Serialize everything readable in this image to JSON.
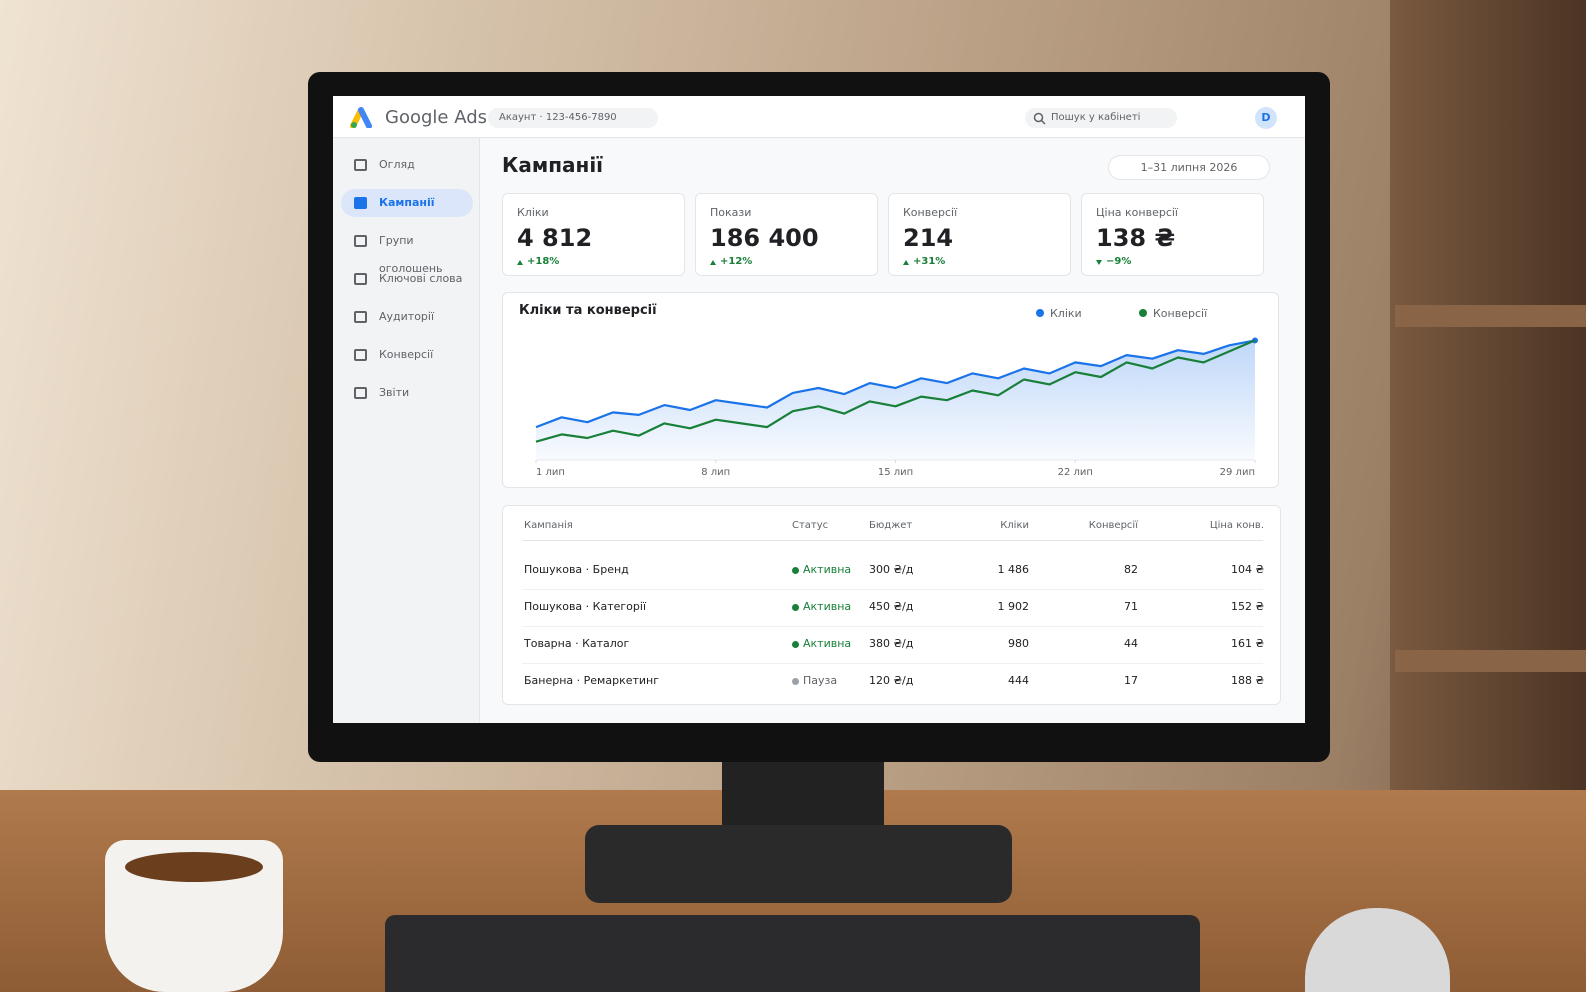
{
  "header": {
    "product": "Google Ads",
    "account": "Акаунт · 123-456-7890",
    "search_placeholder": "Пошук у кабінеті",
    "avatar": "D"
  },
  "sidebar": {
    "items": [
      {
        "label": "Огляд",
        "active": false
      },
      {
        "label": "Кампанії",
        "active": true
      },
      {
        "label": "Групи оголошень",
        "active": false
      },
      {
        "label": "Ключові слова",
        "active": false
      },
      {
        "label": "Аудиторії",
        "active": false
      },
      {
        "label": "Конверсії",
        "active": false
      },
      {
        "label": "Звіти",
        "active": false
      }
    ]
  },
  "page": {
    "title": "Кампанії",
    "date_range": "1–31 липня 2026"
  },
  "kpis": [
    {
      "label": "Кліки",
      "value": "4 812",
      "delta": "+18%",
      "trend": "up"
    },
    {
      "label": "Покази",
      "value": "186 400",
      "delta": "+12%",
      "trend": "up"
    },
    {
      "label": "Конверсії",
      "value": "214",
      "delta": "+31%",
      "trend": "up"
    },
    {
      "label": "Ціна конверсії",
      "value": "138 ₴",
      "delta": "−9%",
      "trend": "down"
    }
  ],
  "chart_data": {
    "type": "line",
    "title": "Кліки та конверсії",
    "x": [
      1,
      2,
      3,
      4,
      5,
      6,
      7,
      8,
      9,
      10,
      11,
      12,
      13,
      14,
      15,
      16,
      17,
      18,
      19,
      20,
      21,
      22,
      23,
      24,
      25,
      26,
      27,
      28,
      29
    ],
    "xlim": [
      1,
      29
    ],
    "xticks": [
      {
        "value": 1,
        "label": "1 лип"
      },
      {
        "value": 8,
        "label": "8 лип"
      },
      {
        "value": 15,
        "label": "15 лип"
      },
      {
        "value": 22,
        "label": "22 лип"
      },
      {
        "value": 29,
        "label": "29 лип"
      }
    ],
    "ylim": [
      0,
      100
    ],
    "series": [
      {
        "name": "Кліки",
        "color": "#1a73e8",
        "values": [
          27,
          35,
          31,
          39,
          37,
          45,
          41,
          49,
          46,
          43,
          55,
          59,
          54,
          63,
          59,
          67,
          63,
          71,
          67,
          75,
          71,
          80,
          77,
          86,
          83,
          90,
          87,
          94,
          98
        ]
      },
      {
        "name": "Конверсії",
        "color": "#188038",
        "values": [
          15,
          21,
          18,
          24,
          20,
          30,
          26,
          33,
          30,
          27,
          40,
          44,
          38,
          48,
          44,
          52,
          49,
          57,
          53,
          66,
          62,
          72,
          68,
          80,
          75,
          84,
          80,
          89,
          98
        ]
      }
    ]
  },
  "table": {
    "columns": [
      "Кампанія",
      "Статус",
      "Бюджет",
      "Кліки",
      "Конверсії",
      "Ціна конв."
    ],
    "rows": [
      [
        "Пошукова · Бренд",
        "Активна",
        "300 ₴/д",
        "1 486",
        "82",
        "104 ₴"
      ],
      [
        "Пошукова · Категорії",
        "Активна",
        "450 ₴/д",
        "1 902",
        "71",
        "152 ₴"
      ],
      [
        "Товарна · Каталог",
        "Активна",
        "380 ₴/д",
        "980",
        "44",
        "161 ₴"
      ],
      [
        "Банерна · Ремаркетинг",
        "Пауза",
        "120 ₴/д",
        "444",
        "17",
        "188 ₴"
      ]
    ],
    "status_colors": [
      "#188038",
      "#188038",
      "#188038",
      "#9aa0a6"
    ]
  }
}
